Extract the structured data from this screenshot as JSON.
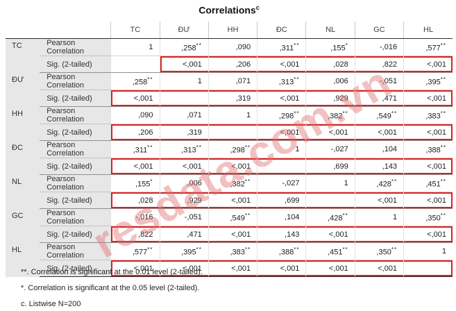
{
  "title": {
    "text": "Correlations",
    "superscript": "c"
  },
  "watermark": {
    "text": "resdata.com.vn",
    "color": "rgba(223,105,105,0.42)"
  },
  "colors": {
    "red_box": "#dd1f1f",
    "label_bg": "#e7e7e7",
    "header_text": "#39424c"
  },
  "table": {
    "columns": [
      "TC",
      "ĐƯ",
      "HH",
      "ĐC",
      "NL",
      "GC",
      "HL"
    ],
    "stat_labels": {
      "pearson": "Pearson Correlation",
      "sig": "Sig. (2-tailed)"
    },
    "rows": [
      {
        "var": "TC",
        "pearson": [
          {
            "v": "1"
          },
          {
            "v": ",258",
            "m": "**"
          },
          {
            "v": ",090"
          },
          {
            "v": ",311",
            "m": "**"
          },
          {
            "v": ",155",
            "m": "*"
          },
          {
            "v": "-,016"
          },
          {
            "v": ",577",
            "m": "**"
          }
        ],
        "sig": [
          "",
          "<,001",
          ",206",
          "<,001",
          ",028",
          ",822",
          "<,001"
        ],
        "sig_box": {
          "start": 1,
          "end": 6
        }
      },
      {
        "var": "ĐƯ",
        "pearson": [
          {
            "v": ",258",
            "m": "**"
          },
          {
            "v": "1"
          },
          {
            "v": ",071"
          },
          {
            "v": ",313",
            "m": "**"
          },
          {
            "v": ",006"
          },
          {
            "v": "-,051"
          },
          {
            "v": ",395",
            "m": "**"
          }
        ],
        "sig": [
          "<,001",
          "",
          ",319",
          "<,001",
          ",929",
          ",471",
          "<,001"
        ],
        "sig_box": {
          "start": 0,
          "end": 6
        }
      },
      {
        "var": "HH",
        "pearson": [
          {
            "v": ",090"
          },
          {
            "v": ",071"
          },
          {
            "v": "1"
          },
          {
            "v": ",298",
            "m": "**"
          },
          {
            "v": ",382",
            "m": "**"
          },
          {
            "v": ",549",
            "m": "**"
          },
          {
            "v": ",383",
            "m": "**"
          }
        ],
        "sig": [
          ",206",
          ",319",
          "",
          "<,001",
          "<,001",
          "<,001",
          "<,001"
        ],
        "sig_box": {
          "start": 0,
          "end": 6
        }
      },
      {
        "var": "ĐC",
        "pearson": [
          {
            "v": ",311",
            "m": "**"
          },
          {
            "v": ",313",
            "m": "**"
          },
          {
            "v": ",298",
            "m": "**"
          },
          {
            "v": "1"
          },
          {
            "v": "-,027"
          },
          {
            "v": ",104"
          },
          {
            "v": ",388",
            "m": "**"
          }
        ],
        "sig": [
          "<,001",
          "<,001",
          "<,001",
          "",
          ",699",
          ",143",
          "<,001"
        ],
        "sig_box": {
          "start": 0,
          "end": 6
        }
      },
      {
        "var": "NL",
        "pearson": [
          {
            "v": ",155",
            "m": "*"
          },
          {
            "v": ",006"
          },
          {
            "v": ",382",
            "m": "**"
          },
          {
            "v": "-,027"
          },
          {
            "v": "1"
          },
          {
            "v": ",428",
            "m": "**"
          },
          {
            "v": ",451",
            "m": "**"
          }
        ],
        "sig": [
          ",028",
          ",929",
          "<,001",
          ",699",
          "",
          "<,001",
          "<,001"
        ],
        "sig_box": {
          "start": 0,
          "end": 6
        }
      },
      {
        "var": "GC",
        "pearson": [
          {
            "v": "-,016"
          },
          {
            "v": "-,051"
          },
          {
            "v": ",549",
            "m": "**"
          },
          {
            "v": ",104"
          },
          {
            "v": ",428",
            "m": "**"
          },
          {
            "v": "1"
          },
          {
            "v": ",350",
            "m": "**"
          }
        ],
        "sig": [
          ",822",
          ",471",
          "<,001",
          ",143",
          "<,001",
          "",
          "<,001"
        ],
        "sig_box": {
          "start": 0,
          "end": 6
        }
      },
      {
        "var": "HL",
        "pearson": [
          {
            "v": ",577",
            "m": "**"
          },
          {
            "v": ",395",
            "m": "**"
          },
          {
            "v": ",383",
            "m": "**"
          },
          {
            "v": ",388",
            "m": "**"
          },
          {
            "v": ",451",
            "m": "**"
          },
          {
            "v": ",350",
            "m": "**"
          },
          {
            "v": "1"
          }
        ],
        "sig": [
          "<,001",
          "<,001",
          "<,001",
          "<,001",
          "<,001",
          "<,001",
          ""
        ],
        "sig_box": {
          "start": 0,
          "end": 6
        }
      }
    ]
  },
  "footnotes": [
    "**. Correlation is significant at the 0.01 level (2-tailed).",
    "*. Correlation is significant at the 0.05 level (2-tailed).",
    "c. Listwise N=200"
  ]
}
